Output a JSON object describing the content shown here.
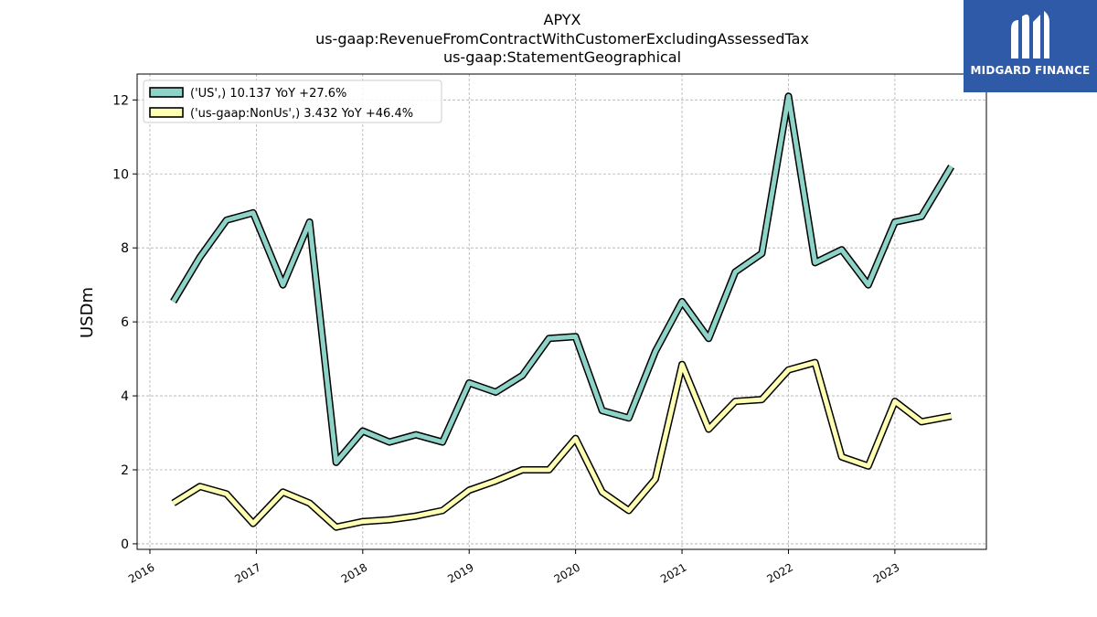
{
  "chart_data": {
    "type": "line",
    "title_lines": [
      "APYX",
      "us-gaap:RevenueFromContractWithCustomerExcludingAssessedTax",
      "us-gaap:StatementGeographical"
    ],
    "xlabel": "",
    "ylabel": "USDm",
    "ylim": [
      -0.15,
      12.7
    ],
    "xlim": [
      2015.88,
      2023.86
    ],
    "x_ticks": [
      2016,
      2017,
      2018,
      2019,
      2020,
      2021,
      2022,
      2023
    ],
    "x_tick_labels": [
      "2016",
      "2017",
      "2018",
      "2019",
      "2020",
      "2021",
      "2022",
      "2023"
    ],
    "y_ticks": [
      0,
      2,
      4,
      6,
      8,
      10,
      12
    ],
    "y_tick_labels": [
      "0",
      "2",
      "4",
      "6",
      "8",
      "10",
      "12"
    ],
    "grid": true,
    "legend_position": "upper-left",
    "series": [
      {
        "name": "('US',) 10.137 YoY +27.6%",
        "color": "#8dd3c7",
        "x": [
          2016.22,
          2016.47,
          2016.72,
          2016.97,
          2017.25,
          2017.5,
          2017.75,
          2018.0,
          2018.25,
          2018.5,
          2018.75,
          2019.0,
          2019.25,
          2019.5,
          2019.75,
          2020.0,
          2020.25,
          2020.5,
          2020.75,
          2021.0,
          2021.25,
          2021.5,
          2021.75,
          2022.0,
          2022.25,
          2022.5,
          2022.75,
          2023.0,
          2023.25,
          2023.53
        ],
        "y": [
          6.55,
          7.75,
          8.75,
          8.95,
          7.0,
          8.7,
          2.2,
          3.05,
          2.75,
          2.95,
          2.75,
          4.35,
          4.1,
          4.55,
          5.55,
          5.6,
          3.6,
          3.4,
          5.2,
          6.55,
          5.55,
          7.35,
          7.85,
          12.1,
          7.6,
          7.95,
          7.0,
          8.7,
          8.85,
          10.2
        ]
      },
      {
        "name": "('us-gaap:NonUs',) 3.432 YoY +46.4%",
        "color": "#ffffb3",
        "x": [
          2016.22,
          2016.47,
          2016.72,
          2016.97,
          2017.25,
          2017.5,
          2017.75,
          2018.0,
          2018.25,
          2018.5,
          2018.75,
          2019.0,
          2019.25,
          2019.5,
          2019.75,
          2020.0,
          2020.25,
          2020.5,
          2020.75,
          2021.0,
          2021.25,
          2021.5,
          2021.75,
          2022.0,
          2022.25,
          2022.5,
          2022.75,
          2023.0,
          2023.25,
          2023.53
        ],
        "y": [
          1.1,
          1.55,
          1.35,
          0.55,
          1.4,
          1.1,
          0.45,
          0.6,
          0.65,
          0.75,
          0.9,
          1.45,
          1.7,
          2.0,
          2.0,
          2.85,
          1.4,
          0.9,
          1.75,
          4.85,
          3.1,
          3.85,
          3.9,
          4.7,
          4.9,
          2.35,
          2.1,
          3.85,
          3.3,
          3.45
        ]
      }
    ]
  },
  "logo": {
    "text": "MIDGARD FINANCE",
    "background": "#2e5aa8"
  }
}
